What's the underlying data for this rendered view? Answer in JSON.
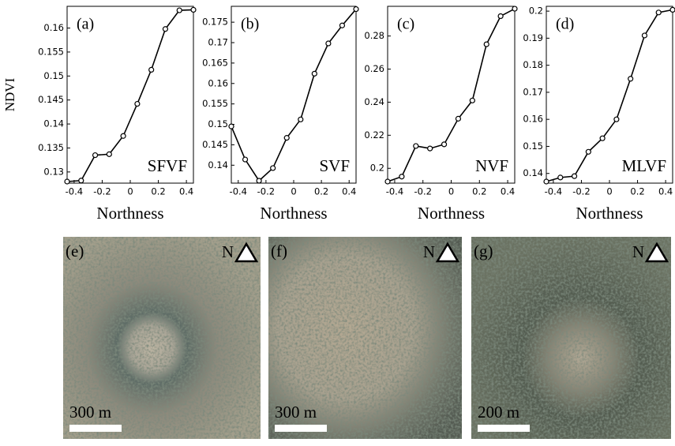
{
  "chart_data": [
    {
      "type": "line",
      "panel_label": "(a)",
      "annotation": "SFVF",
      "y_label": "NDVI",
      "x_label": "Northness",
      "color": "#000000",
      "x": [
        -0.45,
        -0.35,
        -0.25,
        -0.15,
        -0.05,
        0.05,
        0.15,
        0.25,
        0.35,
        0.45
      ],
      "values": [
        0.128,
        0.1282,
        0.1335,
        0.1337,
        0.1375,
        0.1442,
        0.1513,
        0.1598,
        0.1637,
        0.1638
      ],
      "xlim": [
        -0.45,
        0.45
      ],
      "xticks": [
        -0.4,
        -0.2,
        0,
        0.2,
        0.4
      ],
      "ylim": [
        0.128,
        0.1642
      ],
      "yticks": [
        0.13,
        0.135,
        0.14,
        0.145,
        0.15,
        0.155,
        0.16
      ]
    },
    {
      "type": "line",
      "panel_label": "(b)",
      "annotation": "SVF",
      "x_label": "Northness",
      "color": "#000000",
      "x": [
        -0.45,
        -0.35,
        -0.25,
        -0.15,
        -0.05,
        0.05,
        0.15,
        0.25,
        0.35,
        0.45
      ],
      "values": [
        0.1495,
        0.1414,
        0.1362,
        0.1393,
        0.1467,
        0.1512,
        0.1624,
        0.1698,
        0.1742,
        0.1782
      ],
      "xlim": [
        -0.45,
        0.45
      ],
      "xticks": [
        -0.4,
        -0.2,
        0,
        0.2,
        0.4
      ],
      "ylim": [
        0.136,
        0.1785
      ],
      "yticks": [
        0.14,
        0.145,
        0.15,
        0.155,
        0.16,
        0.165,
        0.17,
        0.175
      ]
    },
    {
      "type": "line",
      "panel_label": "(c)",
      "annotation": "NVF",
      "x_label": "Northness",
      "color": "#000000",
      "x": [
        -0.45,
        -0.35,
        -0.25,
        -0.15,
        -0.05,
        0.05,
        0.15,
        0.25,
        0.35,
        0.45
      ],
      "values": [
        0.192,
        0.195,
        0.2135,
        0.212,
        0.2145,
        0.23,
        0.241,
        0.275,
        0.292,
        0.2965
      ],
      "xlim": [
        -0.45,
        0.45
      ],
      "xticks": [
        -0.4,
        -0.2,
        0,
        0.2,
        0.4
      ],
      "ylim": [
        0.192,
        0.297
      ],
      "yticks": [
        0.2,
        0.22,
        0.24,
        0.26,
        0.28
      ]
    },
    {
      "type": "line",
      "panel_label": "(d)",
      "annotation": "MLVF",
      "x_label": "Northness",
      "color": "#000000",
      "x": [
        -0.45,
        -0.35,
        -0.25,
        -0.15,
        -0.05,
        0.05,
        0.15,
        0.25,
        0.35,
        0.45
      ],
      "values": [
        0.137,
        0.1385,
        0.139,
        0.148,
        0.153,
        0.16,
        0.175,
        0.191,
        0.1995,
        0.2005
      ],
      "xlim": [
        -0.45,
        0.45
      ],
      "xticks": [
        -0.4,
        -0.2,
        0,
        0.2,
        0.4
      ],
      "ylim": [
        0.137,
        0.2012
      ],
      "yticks": [
        0.14,
        0.15,
        0.16,
        0.17,
        0.18,
        0.19,
        0.2
      ]
    }
  ],
  "images": [
    {
      "label": "(e)",
      "north": "N",
      "scale": "300 m"
    },
    {
      "label": "(f)",
      "north": "N",
      "scale": "300 m"
    },
    {
      "label": "(g)",
      "north": "N",
      "scale": "200 m"
    }
  ]
}
